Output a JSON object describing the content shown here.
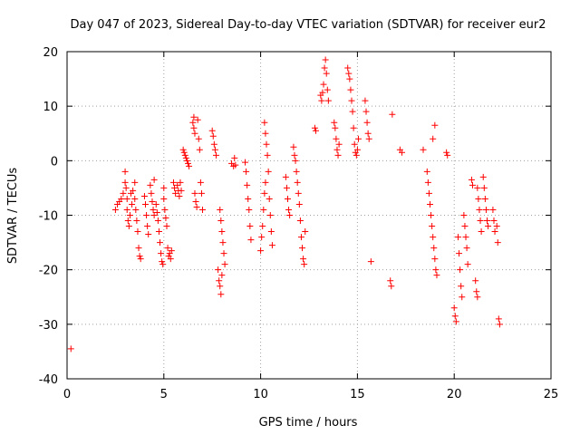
{
  "chart_data": {
    "type": "scatter",
    "title": "Day 047 of 2023, Sidereal Day-to-day VTEC variation (SDTVAR) for receiver eur2",
    "xlabel": "GPS time / hours",
    "ylabel": "SDTVAR / TECUs",
    "xlim": [
      0,
      25
    ],
    "ylim": [
      -40,
      20
    ],
    "xticks": [
      0,
      5,
      10,
      15,
      20,
      25
    ],
    "yticks": [
      -40,
      -30,
      -20,
      -10,
      0,
      10,
      20
    ],
    "x_tick_labels": [
      "0",
      "5",
      "10",
      "15",
      "20",
      "25"
    ],
    "y_tick_labels": [
      "-40",
      "-30",
      "-20",
      "-10",
      "0",
      "10",
      "20"
    ],
    "grid": true,
    "marker": "plus",
    "color": "#ff0000",
    "series": [
      {
        "name": "SDTVAR",
        "points": [
          [
            0.2,
            -34.5
          ],
          [
            2.5,
            -9
          ],
          [
            2.6,
            -8
          ],
          [
            2.7,
            -7.5
          ],
          [
            2.8,
            -7
          ],
          [
            2.9,
            -6
          ],
          [
            3.0,
            -2
          ],
          [
            3.0,
            -4
          ],
          [
            3.05,
            -5
          ],
          [
            3.1,
            -7
          ],
          [
            3.1,
            -9
          ],
          [
            3.15,
            -11
          ],
          [
            3.2,
            -12
          ],
          [
            3.25,
            -10
          ],
          [
            3.3,
            -6
          ],
          [
            3.35,
            -8
          ],
          [
            3.4,
            -5.5
          ],
          [
            3.5,
            -4
          ],
          [
            3.5,
            -7
          ],
          [
            3.55,
            -9
          ],
          [
            3.6,
            -11
          ],
          [
            3.65,
            -13
          ],
          [
            3.7,
            -16
          ],
          [
            3.75,
            -17.5
          ],
          [
            3.8,
            -18
          ],
          [
            4.0,
            -6.5
          ],
          [
            4.05,
            -8
          ],
          [
            4.1,
            -10
          ],
          [
            4.15,
            -12
          ],
          [
            4.2,
            -13.5
          ],
          [
            4.3,
            -4.5
          ],
          [
            4.35,
            -6
          ],
          [
            4.4,
            -7.5
          ],
          [
            4.45,
            -9
          ],
          [
            4.5,
            -3.5
          ],
          [
            4.5,
            -10
          ],
          [
            4.6,
            -8
          ],
          [
            4.65,
            -9.5
          ],
          [
            4.7,
            -11
          ],
          [
            4.75,
            -13
          ],
          [
            4.8,
            -15
          ],
          [
            4.85,
            -17
          ],
          [
            4.9,
            -18.5
          ],
          [
            4.95,
            -19
          ],
          [
            5.0,
            -5
          ],
          [
            5.0,
            -7
          ],
          [
            5.05,
            -9
          ],
          [
            5.1,
            -10.5
          ],
          [
            5.15,
            -12
          ],
          [
            5.2,
            -16
          ],
          [
            5.25,
            -17.5
          ],
          [
            5.3,
            -17
          ],
          [
            5.35,
            -18
          ],
          [
            5.4,
            -16.5
          ],
          [
            5.5,
            -4
          ],
          [
            5.55,
            -5
          ],
          [
            5.6,
            -6
          ],
          [
            5.7,
            -4.5
          ],
          [
            5.75,
            -5.5
          ],
          [
            5.8,
            -6.5
          ],
          [
            5.85,
            -4
          ],
          [
            5.9,
            -5.5
          ],
          [
            6.0,
            2
          ],
          [
            6.05,
            1.5
          ],
          [
            6.1,
            1
          ],
          [
            6.15,
            0.5
          ],
          [
            6.2,
            0
          ],
          [
            6.25,
            -0.5
          ],
          [
            6.3,
            -1
          ],
          [
            6.5,
            7
          ],
          [
            6.55,
            8
          ],
          [
            6.55,
            6
          ],
          [
            6.6,
            5
          ],
          [
            6.6,
            -6
          ],
          [
            6.65,
            -7.5
          ],
          [
            6.7,
            -8.5
          ],
          [
            6.75,
            7.5
          ],
          [
            6.8,
            4
          ],
          [
            6.85,
            2
          ],
          [
            6.9,
            -4
          ],
          [
            6.95,
            -6
          ],
          [
            7.0,
            -9
          ],
          [
            7.5,
            5.5
          ],
          [
            7.55,
            4.5
          ],
          [
            7.6,
            3
          ],
          [
            7.65,
            2
          ],
          [
            7.7,
            1
          ],
          [
            7.8,
            -20
          ],
          [
            7.85,
            -22
          ],
          [
            7.9,
            -23
          ],
          [
            7.95,
            -24.5
          ],
          [
            8.0,
            -21
          ],
          [
            7.9,
            -9
          ],
          [
            7.95,
            -11
          ],
          [
            8.0,
            -13
          ],
          [
            8.05,
            -15
          ],
          [
            8.1,
            -17
          ],
          [
            8.15,
            -19
          ],
          [
            8.5,
            -0.5
          ],
          [
            8.6,
            -1
          ],
          [
            8.65,
            0.5
          ],
          [
            8.7,
            -0.8
          ],
          [
            9.2,
            -0.3
          ],
          [
            9.25,
            -2
          ],
          [
            9.3,
            -4.5
          ],
          [
            9.35,
            -7
          ],
          [
            9.4,
            -9
          ],
          [
            9.45,
            -12
          ],
          [
            9.5,
            -14.5
          ],
          [
            10.0,
            -16.5
          ],
          [
            10.05,
            -14
          ],
          [
            10.1,
            -12
          ],
          [
            10.15,
            -9
          ],
          [
            10.2,
            -6
          ],
          [
            10.25,
            -4
          ],
          [
            10.2,
            7
          ],
          [
            10.25,
            5
          ],
          [
            10.3,
            3
          ],
          [
            10.35,
            1
          ],
          [
            10.4,
            -2
          ],
          [
            10.45,
            -7
          ],
          [
            10.5,
            -10
          ],
          [
            10.55,
            -13
          ],
          [
            10.6,
            -15.5
          ],
          [
            11.3,
            -3
          ],
          [
            11.35,
            -5
          ],
          [
            11.4,
            -7
          ],
          [
            11.45,
            -9
          ],
          [
            11.5,
            -10
          ],
          [
            11.7,
            2.5
          ],
          [
            11.75,
            1
          ],
          [
            11.8,
            0
          ],
          [
            11.85,
            -2
          ],
          [
            11.9,
            -4
          ],
          [
            11.95,
            -6
          ],
          [
            12.0,
            -8
          ],
          [
            12.05,
            -11
          ],
          [
            12.1,
            -14
          ],
          [
            12.15,
            -16
          ],
          [
            12.2,
            -18
          ],
          [
            12.25,
            -19
          ],
          [
            12.3,
            -13
          ],
          [
            12.8,
            6
          ],
          [
            12.85,
            5.5
          ],
          [
            13.1,
            12
          ],
          [
            13.15,
            11
          ],
          [
            13.2,
            12.5
          ],
          [
            13.25,
            14
          ],
          [
            13.3,
            17
          ],
          [
            13.35,
            18.5
          ],
          [
            13.4,
            16
          ],
          [
            13.45,
            13
          ],
          [
            13.5,
            11
          ],
          [
            13.8,
            7
          ],
          [
            13.85,
            6
          ],
          [
            13.9,
            4
          ],
          [
            13.95,
            2
          ],
          [
            14.0,
            1
          ],
          [
            14.05,
            3
          ],
          [
            14.5,
            17
          ],
          [
            14.55,
            16
          ],
          [
            14.6,
            15
          ],
          [
            14.65,
            13
          ],
          [
            14.7,
            11
          ],
          [
            14.75,
            9
          ],
          [
            14.8,
            6
          ],
          [
            14.85,
            3
          ],
          [
            14.9,
            1.5
          ],
          [
            14.95,
            1
          ],
          [
            15.0,
            2
          ],
          [
            15.05,
            4
          ],
          [
            15.4,
            11
          ],
          [
            15.45,
            9
          ],
          [
            15.5,
            7
          ],
          [
            15.55,
            5
          ],
          [
            15.6,
            4
          ],
          [
            15.7,
            -18.5
          ],
          [
            16.7,
            -22
          ],
          [
            16.75,
            -23
          ],
          [
            16.8,
            8.5
          ],
          [
            17.2,
            2
          ],
          [
            17.3,
            1.5
          ],
          [
            18.4,
            2
          ],
          [
            18.6,
            -2
          ],
          [
            18.65,
            -4
          ],
          [
            18.7,
            -6
          ],
          [
            18.75,
            -8
          ],
          [
            18.8,
            -10
          ],
          [
            18.85,
            -12
          ],
          [
            18.9,
            -14
          ],
          [
            18.95,
            -16
          ],
          [
            19.0,
            -18
          ],
          [
            19.05,
            -20
          ],
          [
            19.1,
            -21
          ],
          [
            18.9,
            4
          ],
          [
            19.0,
            6.5
          ],
          [
            19.6,
            1.5
          ],
          [
            19.65,
            1
          ],
          [
            20.0,
            -27
          ],
          [
            20.05,
            -28.5
          ],
          [
            20.1,
            -29.5
          ],
          [
            20.2,
            -14
          ],
          [
            20.25,
            -17
          ],
          [
            20.3,
            -20
          ],
          [
            20.35,
            -23
          ],
          [
            20.4,
            -25
          ],
          [
            20.5,
            -10
          ],
          [
            20.55,
            -12
          ],
          [
            20.6,
            -14
          ],
          [
            20.65,
            -16
          ],
          [
            20.7,
            -19
          ],
          [
            20.9,
            -3.5
          ],
          [
            20.95,
            -4.5
          ],
          [
            21.2,
            -5
          ],
          [
            21.25,
            -7
          ],
          [
            21.3,
            -9
          ],
          [
            21.35,
            -11
          ],
          [
            21.4,
            -13
          ],
          [
            21.1,
            -22
          ],
          [
            21.15,
            -24
          ],
          [
            21.2,
            -25
          ],
          [
            21.5,
            -3
          ],
          [
            21.55,
            -5
          ],
          [
            21.6,
            -7
          ],
          [
            21.65,
            -9
          ],
          [
            21.7,
            -11
          ],
          [
            21.75,
            -12
          ],
          [
            22.0,
            -9
          ],
          [
            22.05,
            -11
          ],
          [
            22.1,
            -13
          ],
          [
            22.2,
            -12
          ],
          [
            22.25,
            -15
          ],
          [
            22.3,
            -29
          ],
          [
            22.35,
            -30
          ]
        ]
      }
    ]
  }
}
